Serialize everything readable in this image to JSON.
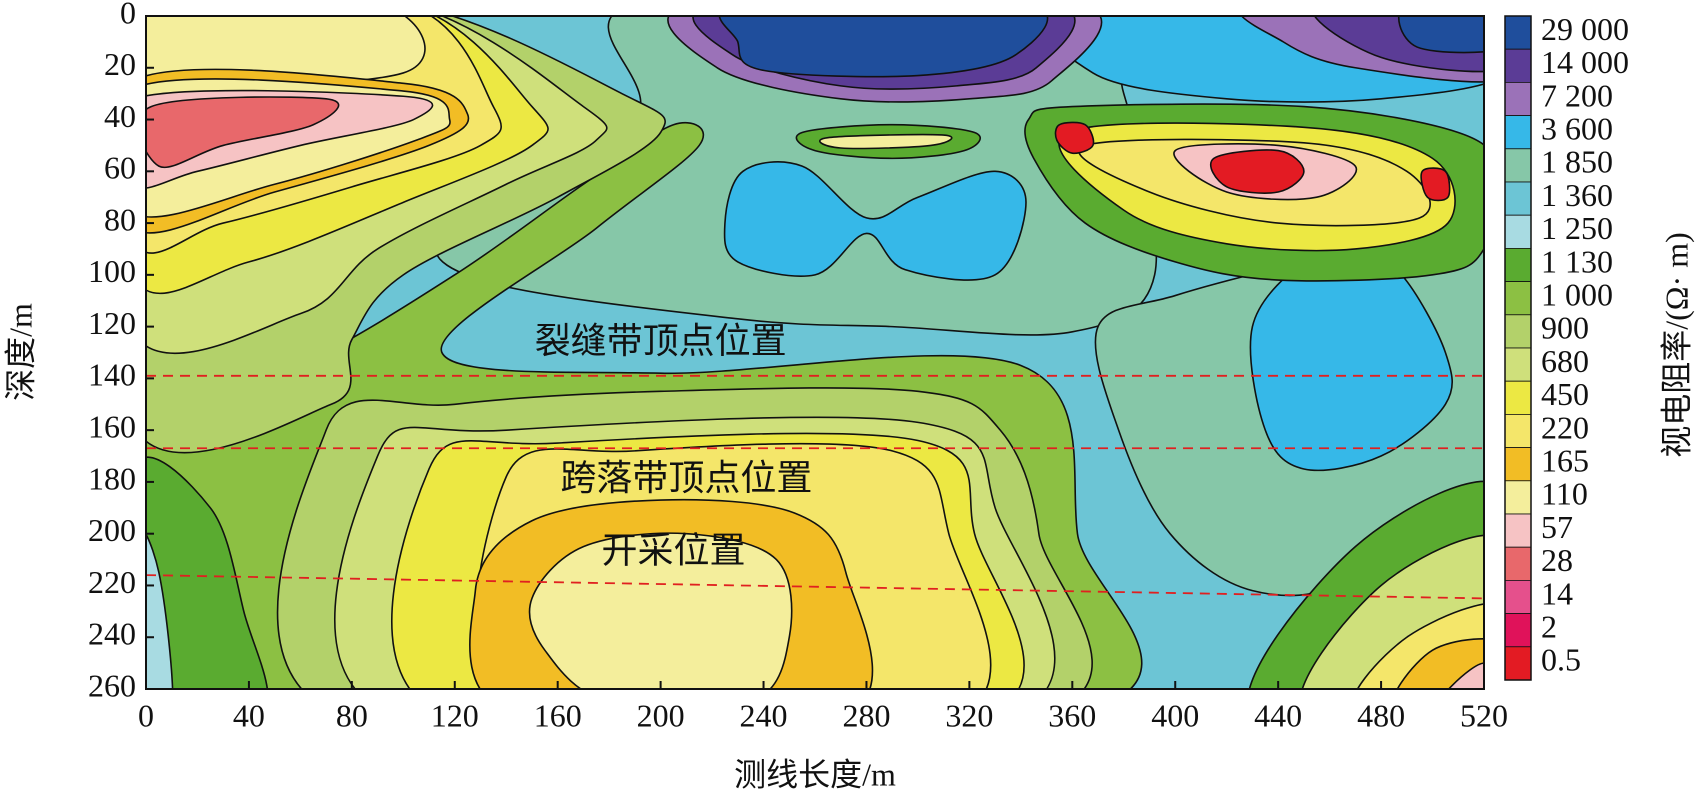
{
  "chart_data": {
    "type": "contour",
    "xlabel": "测线长度/m",
    "ylabel": "深度/m",
    "xlim": [
      0,
      520
    ],
    "ylim": [
      0,
      260
    ],
    "xticks": [
      0,
      40,
      80,
      120,
      160,
      200,
      240,
      280,
      320,
      360,
      400,
      440,
      480,
      520
    ],
    "yticks": [
      0,
      20,
      40,
      60,
      80,
      100,
      120,
      140,
      160,
      180,
      200,
      220,
      240,
      260
    ],
    "colorbar": {
      "label": "视电阻率/(Ω· m)",
      "levels": [
        {
          "value": 29000,
          "label": "29 000"
        },
        {
          "value": 14000,
          "label": "14 000"
        },
        {
          "value": 7200,
          "label": "7 200"
        },
        {
          "value": 3600,
          "label": "3 600"
        },
        {
          "value": 1850,
          "label": "1 850"
        },
        {
          "value": 1360,
          "label": "1 360"
        },
        {
          "value": 1250,
          "label": "1 250"
        },
        {
          "value": 1130,
          "label": "1 130"
        },
        {
          "value": 1000,
          "label": "1 000"
        },
        900,
        680,
        450,
        220,
        165,
        110,
        57,
        28,
        14,
        2,
        0.5
      ],
      "colors": [
        "#1f4e9c",
        "#5b3c96",
        "#9b72b8",
        "#36b8e8",
        "#86c7a8",
        "#6cc5d5",
        "#a8dbe2",
        "#5aab30",
        "#8cc043",
        "#b3d16a",
        "#cfe07b",
        "#ece843",
        "#f4e66a",
        "#f2bd25",
        "#f4ee9c",
        "#f6c3c4",
        "#e8686b",
        "#e5508c",
        "#e0125a",
        "#e31b23"
      ]
    },
    "reference_lines": [
      {
        "label": "裂缝带顶点位置",
        "y0": 139,
        "y1": 139
      },
      {
        "label": "跨落带顶点位置",
        "y0": 167,
        "y1": 167
      },
      {
        "label": "开采位置",
        "y0": 216,
        "y1": 225
      }
    ]
  }
}
